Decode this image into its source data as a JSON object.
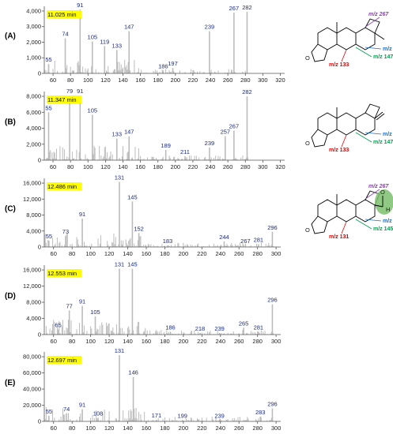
{
  "figure": {
    "colors": {
      "bar": "#bcbcbc",
      "axis": "#555555",
      "rt_highlight": "#ffff00",
      "peak_label": "#1a2a8a",
      "red": "#e00000",
      "green": "#00a050",
      "blue": "#1a6fc0",
      "purple": "#8a3fb0",
      "aldehyde_fill": "#7dbf6e"
    }
  },
  "chart_data": [
    {
      "type": "bar",
      "panel_label": "(A)",
      "retention_time": "11.025 min",
      "xlim": [
        50,
        325
      ],
      "x_ticks": [
        60,
        80,
        100,
        120,
        140,
        160,
        180,
        200,
        220,
        240,
        260,
        280,
        300,
        320
      ],
      "ylim": [
        0,
        4200
      ],
      "y_ticks": [
        0,
        1000,
        2000,
        3000,
        4000
      ],
      "y_tick_labels": [
        "0",
        "1,000",
        "2,000",
        "3,000",
        "4,000"
      ],
      "labeled_peaks": [
        {
          "mz": 55,
          "intensity": 600,
          "label": "55"
        },
        {
          "mz": 74,
          "intensity": 2250,
          "label": "74"
        },
        {
          "mz": 91,
          "intensity": 4100,
          "label": "91"
        },
        {
          "mz": 105,
          "intensity": 2050,
          "label": "105"
        },
        {
          "mz": 119,
          "intensity": 1750,
          "label": "119"
        },
        {
          "mz": 133,
          "intensity": 1500,
          "label": "133"
        },
        {
          "mz": 147,
          "intensity": 2700,
          "label": "147"
        },
        {
          "mz": 186,
          "intensity": 180,
          "label": "186"
        },
        {
          "mz": 197,
          "intensity": 350,
          "label": "197"
        },
        {
          "mz": 239,
          "intensity": 2700,
          "label": "239"
        },
        {
          "mz": 267,
          "intensity": 3900,
          "label": "267"
        },
        {
          "mz": 282,
          "intensity": 3950,
          "label": "282"
        }
      ],
      "structure_labels": [
        {
          "text": "m/z 267",
          "color": "purple"
        },
        {
          "text": "m/z 161",
          "color": "blue"
        },
        {
          "text": "m/z 147",
          "color": "green"
        },
        {
          "text": "m/z 133",
          "color": "red"
        }
      ]
    },
    {
      "type": "bar",
      "panel_label": "(B)",
      "retention_time": "11.347 min",
      "xlim": [
        50,
        325
      ],
      "x_ticks": [
        60,
        80,
        100,
        120,
        140,
        160,
        180,
        200,
        220,
        240,
        260,
        280,
        300,
        320
      ],
      "ylim": [
        0,
        8400
      ],
      "y_ticks": [
        0,
        2000,
        4000,
        6000,
        8000
      ],
      "y_tick_labels": [
        "0",
        "2,000",
        "4,000",
        "6,000",
        "8,000"
      ],
      "labeled_peaks": [
        {
          "mz": 55,
          "intensity": 6000,
          "label": "55"
        },
        {
          "mz": 79,
          "intensity": 8100,
          "label": "79"
        },
        {
          "mz": 91,
          "intensity": 8100,
          "label": "91"
        },
        {
          "mz": 105,
          "intensity": 5700,
          "label": "105"
        },
        {
          "mz": 133,
          "intensity": 2700,
          "label": "133"
        },
        {
          "mz": 147,
          "intensity": 3000,
          "label": "147"
        },
        {
          "mz": 189,
          "intensity": 1300,
          "label": "189"
        },
        {
          "mz": 211,
          "intensity": 500,
          "label": "211"
        },
        {
          "mz": 239,
          "intensity": 1600,
          "label": "239"
        },
        {
          "mz": 257,
          "intensity": 3000,
          "label": "257"
        },
        {
          "mz": 267,
          "intensity": 3700,
          "label": "267"
        },
        {
          "mz": 282,
          "intensity": 8000,
          "label": "282"
        }
      ],
      "structure_labels": [
        {
          "text": "m/z 161",
          "color": "blue"
        },
        {
          "text": "m/z 147",
          "color": "green"
        },
        {
          "text": "m/z 133",
          "color": "red"
        }
      ]
    },
    {
      "type": "bar",
      "panel_label": "(C)",
      "retention_time": "12.486 min",
      "xlim": [
        50,
        305
      ],
      "x_ticks": [
        60,
        80,
        100,
        120,
        140,
        160,
        180,
        200,
        220,
        240,
        260,
        280,
        300
      ],
      "ylim": [
        0,
        16800
      ],
      "y_ticks": [
        0,
        4000,
        8000,
        12000,
        16000
      ],
      "y_tick_labels": [
        "0",
        "4,000",
        "8,000",
        "12,000",
        "16,000"
      ],
      "labeled_peaks": [
        {
          "mz": 55,
          "intensity": 1600,
          "label": "55"
        },
        {
          "mz": 73,
          "intensity": 2800,
          "label": "73"
        },
        {
          "mz": 91,
          "intensity": 7100,
          "label": "91"
        },
        {
          "mz": 131,
          "intensity": 16300,
          "label": "131"
        },
        {
          "mz": 145,
          "intensity": 11400,
          "label": "145"
        },
        {
          "mz": 152,
          "intensity": 3500,
          "label": "152"
        },
        {
          "mz": 183,
          "intensity": 400,
          "label": "183"
        },
        {
          "mz": 244,
          "intensity": 1400,
          "label": "244"
        },
        {
          "mz": 267,
          "intensity": 400,
          "label": "267"
        },
        {
          "mz": 281,
          "intensity": 700,
          "label": "281"
        },
        {
          "mz": 296,
          "intensity": 3800,
          "label": "296"
        }
      ],
      "structure_labels": [
        {
          "text": "m/z 267",
          "color": "purple"
        },
        {
          "text": "m/z 158",
          "color": "blue"
        },
        {
          "text": "m/z 145",
          "color": "green"
        },
        {
          "text": "m/z 131",
          "color": "red"
        }
      ]
    },
    {
      "type": "bar",
      "panel_label": "(D)",
      "retention_time": "12.553 min",
      "xlim": [
        50,
        305
      ],
      "x_ticks": [
        60,
        80,
        100,
        120,
        140,
        160,
        180,
        200,
        220,
        240,
        260,
        280,
        300
      ],
      "ylim": [
        0,
        16800
      ],
      "y_ticks": [
        0,
        4000,
        8000,
        12000,
        16000
      ],
      "y_tick_labels": [
        "0",
        "4,000",
        "8,000",
        "12,000",
        "16,000"
      ],
      "labeled_peaks": [
        {
          "mz": 65,
          "intensity": 1300,
          "label": "65"
        },
        {
          "mz": 77,
          "intensity": 6000,
          "label": "77"
        },
        {
          "mz": 91,
          "intensity": 7100,
          "label": "91"
        },
        {
          "mz": 105,
          "intensity": 4500,
          "label": "105"
        },
        {
          "mz": 131,
          "intensity": 16300,
          "label": "131"
        },
        {
          "mz": 145,
          "intensity": 16300,
          "label": "145"
        },
        {
          "mz": 186,
          "intensity": 700,
          "label": "186"
        },
        {
          "mz": 218,
          "intensity": 400,
          "label": "218"
        },
        {
          "mz": 239,
          "intensity": 400,
          "label": "239"
        },
        {
          "mz": 265,
          "intensity": 1700,
          "label": "265"
        },
        {
          "mz": 281,
          "intensity": 700,
          "label": "281"
        },
        {
          "mz": 296,
          "intensity": 7500,
          "label": "296"
        }
      ]
    },
    {
      "type": "bar",
      "panel_label": "(E)",
      "retention_time": "12.697 min",
      "xlim": [
        50,
        305
      ],
      "x_ticks": [
        60,
        80,
        100,
        120,
        140,
        160,
        180,
        200,
        220,
        240,
        260,
        280,
        300
      ],
      "ylim": [
        0,
        84000
      ],
      "y_ticks": [
        0,
        20000,
        40000,
        60000,
        80000
      ],
      "y_tick_labels": [
        "0",
        "20,000",
        "40,000",
        "60,000",
        "80,000"
      ],
      "labeled_peaks": [
        {
          "mz": 55,
          "intensity": 7000,
          "label": "55"
        },
        {
          "mz": 74,
          "intensity": 10000,
          "label": "74"
        },
        {
          "mz": 91,
          "intensity": 15000,
          "label": "91"
        },
        {
          "mz": 108,
          "intensity": 4500,
          "label": "108"
        },
        {
          "mz": 131,
          "intensity": 82000,
          "label": "131"
        },
        {
          "mz": 146,
          "intensity": 55000,
          "label": "146"
        },
        {
          "mz": 171,
          "intensity": 2000,
          "label": "171"
        },
        {
          "mz": 199,
          "intensity": 1500,
          "label": "199"
        },
        {
          "mz": 239,
          "intensity": 1500,
          "label": "239"
        },
        {
          "mz": 283,
          "intensity": 6000,
          "label": "283"
        },
        {
          "mz": 296,
          "intensity": 16000,
          "label": "296"
        }
      ]
    }
  ]
}
